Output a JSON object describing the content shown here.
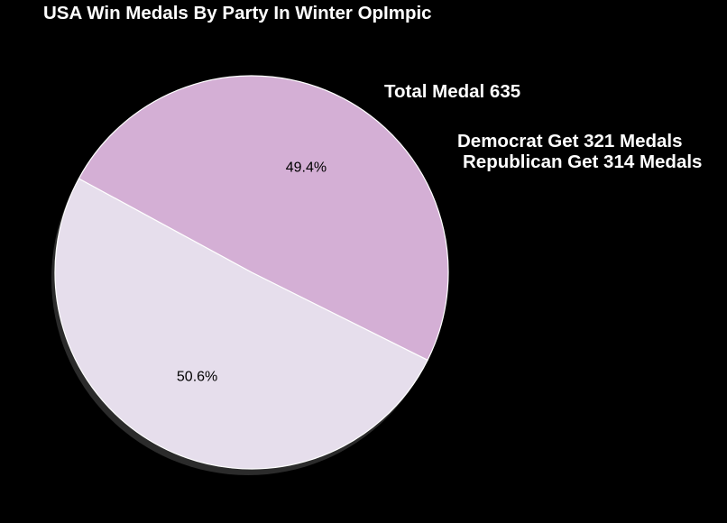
{
  "chart_data": {
    "type": "pie",
    "title": "USA Win Medals By Party In Winter OpImpic",
    "annotations": {
      "total": "Total Medal 635",
      "democrat": "Democrat Get 321 Medals",
      "republican": "Republican Get 314 Medals"
    },
    "values": [
      321,
      314
    ],
    "slice_labels": [
      "50.6%",
      "49.4%"
    ],
    "colors": [
      "#e6deec",
      "#d4afd5"
    ],
    "shadow": true
  }
}
